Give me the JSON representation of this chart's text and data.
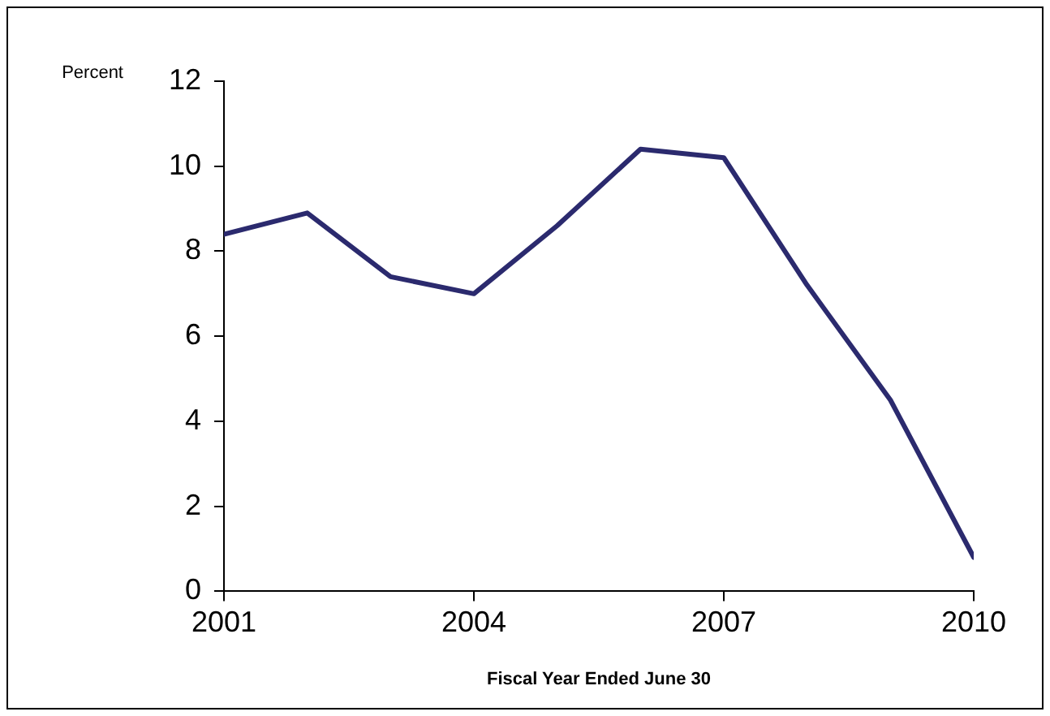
{
  "chart_data": {
    "type": "line",
    "xlabel": "Fiscal Year Ended June 30",
    "ylabel": "Percent",
    "x": [
      2001,
      2002,
      2003,
      2004,
      2005,
      2006,
      2007,
      2008,
      2009,
      2010
    ],
    "series": [
      {
        "color": "#2b2a6e",
        "values": [
          8.4,
          8.9,
          7.4,
          7.0,
          8.6,
          10.4,
          10.2,
          7.2,
          4.5,
          0.8
        ]
      }
    ],
    "xlim": [
      2001,
      2010
    ],
    "xticks": [
      2001,
      2004,
      2007,
      2010
    ],
    "ylim": [
      0,
      12
    ],
    "yticks": [
      0,
      2,
      4,
      6,
      8,
      10,
      12
    ],
    "grid": false,
    "legend": false,
    "marker": "none",
    "line_style": "solid"
  }
}
